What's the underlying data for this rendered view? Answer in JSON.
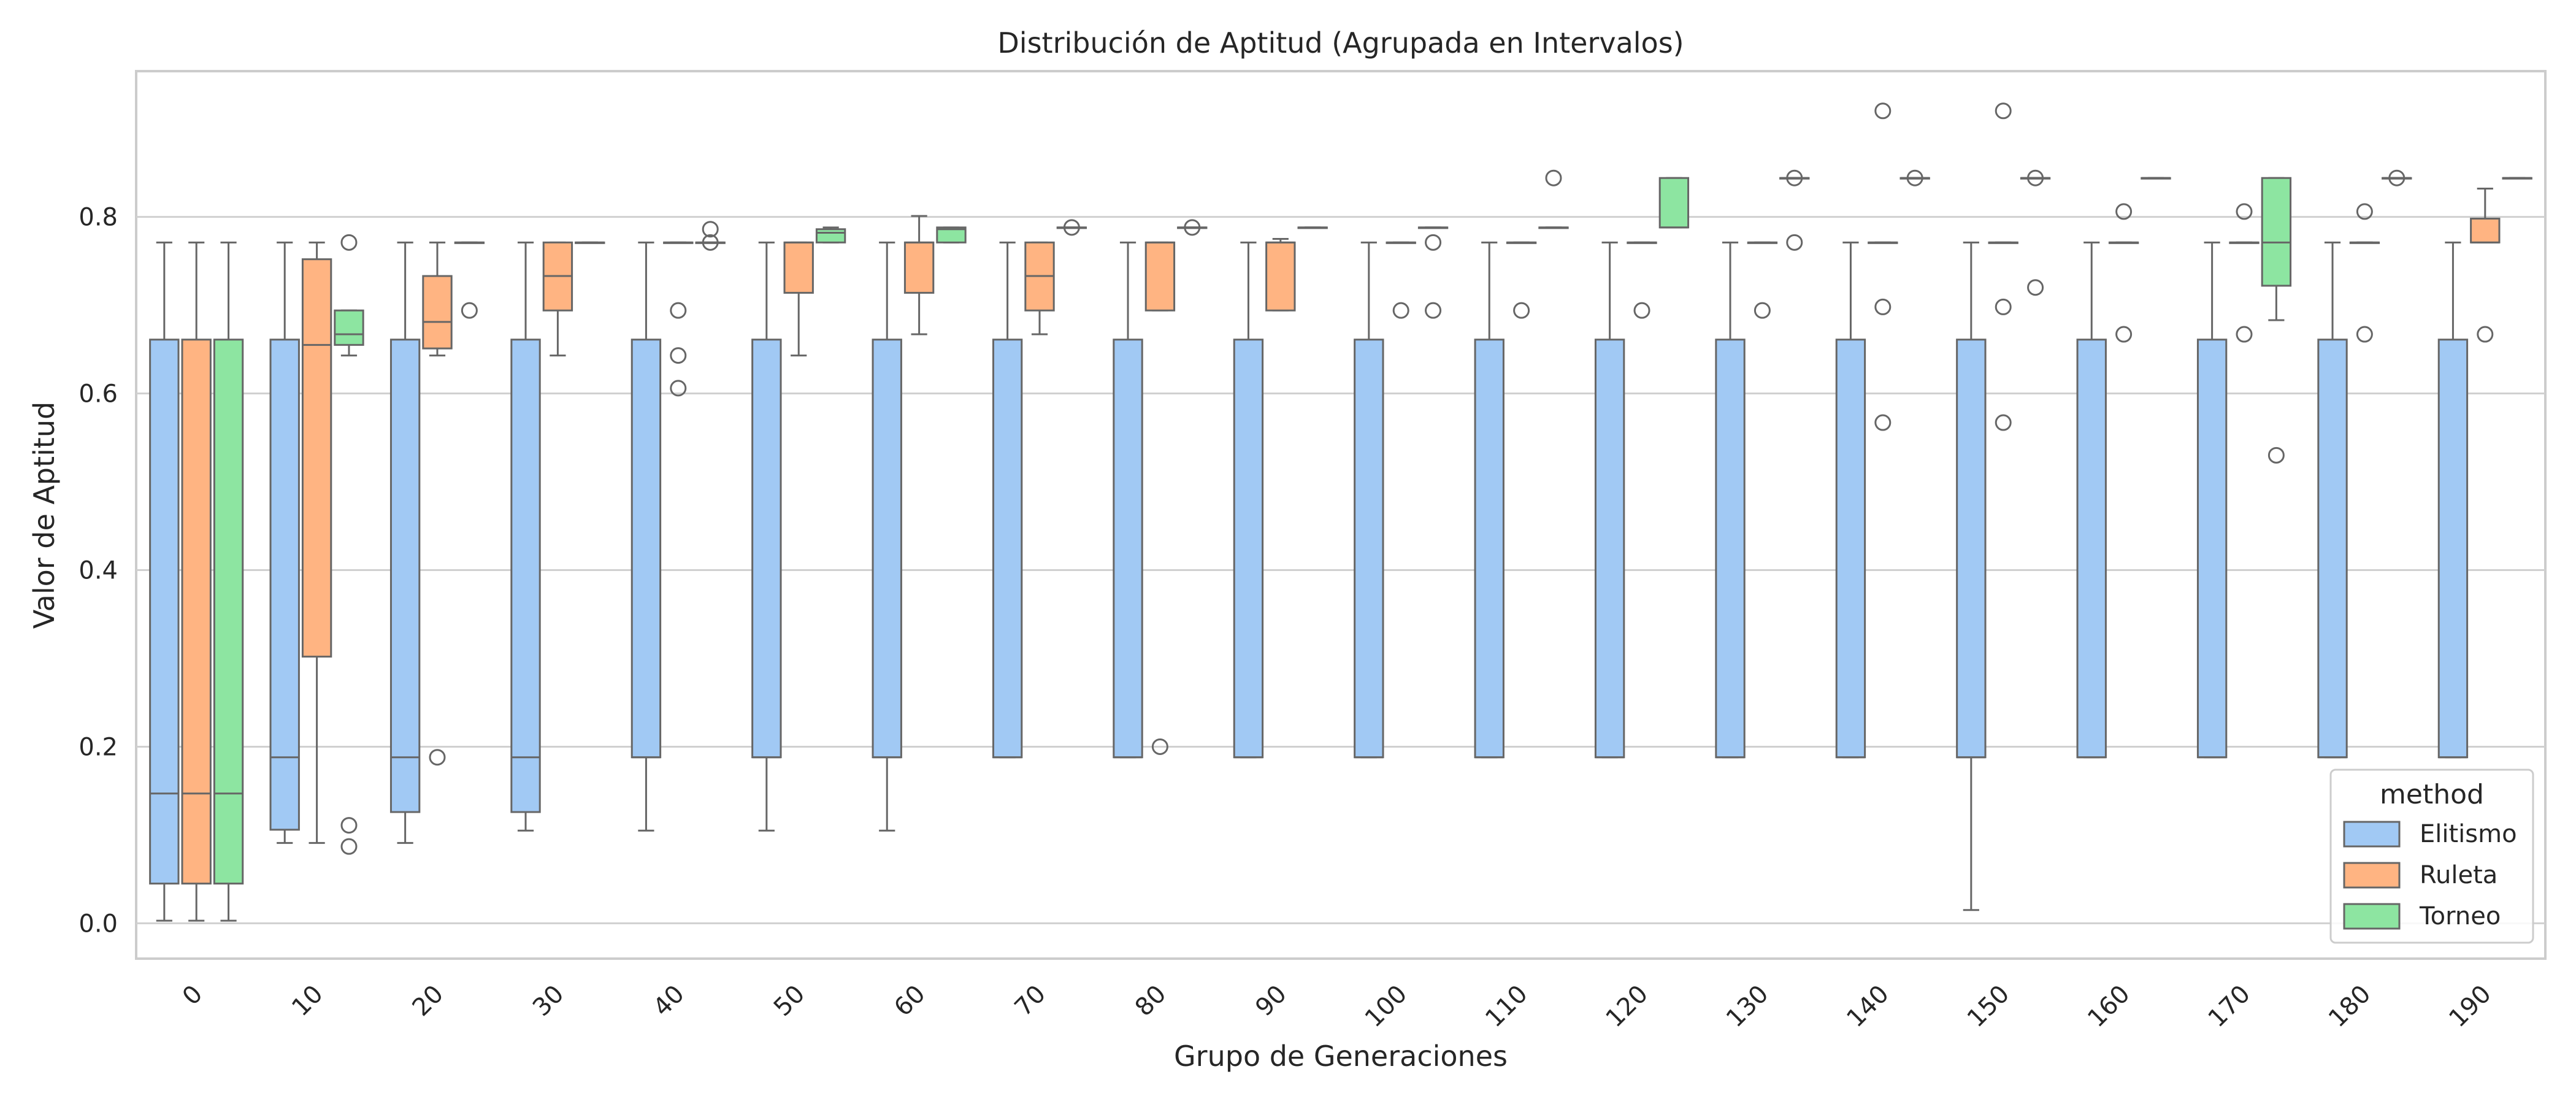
{
  "chart_data": {
    "type": "box",
    "title": "Distribución de Aptitud (Agrupada en Intervalos)",
    "xlabel": "Grupo de Generaciones",
    "ylabel": "Valor de Aptitud",
    "ylim": [
      -0.04,
      0.965
    ],
    "yticks": [
      "0.0",
      "0.2",
      "0.4",
      "0.6",
      "0.8"
    ],
    "categories": [
      "0",
      "10",
      "20",
      "30",
      "40",
      "50",
      "60",
      "70",
      "80",
      "90",
      "100",
      "110",
      "120",
      "130",
      "140",
      "150",
      "160",
      "170",
      "180",
      "190"
    ],
    "grid": "horizontal",
    "legend": {
      "title": "method",
      "placement": "lower-right"
    },
    "series": [
      {
        "name": "Elitismo",
        "color": "#a1c9f4",
        "boxes": [
          {
            "whislo": 0.003,
            "q1": 0.045,
            "med": 0.147,
            "q3": 0.661,
            "whishi": 0.771,
            "fliers": []
          },
          {
            "whislo": 0.091,
            "q1": 0.106,
            "med": 0.188,
            "q3": 0.661,
            "whishi": 0.771,
            "fliers": []
          },
          {
            "whislo": 0.091,
            "q1": 0.126,
            "med": 0.188,
            "q3": 0.661,
            "whishi": 0.771,
            "fliers": []
          },
          {
            "whislo": 0.105,
            "q1": 0.126,
            "med": 0.188,
            "q3": 0.661,
            "whishi": 0.771,
            "fliers": []
          },
          {
            "whislo": 0.105,
            "q1": 0.188,
            "med": 0.188,
            "q3": 0.661,
            "whishi": 0.771,
            "fliers": []
          },
          {
            "whislo": 0.105,
            "q1": 0.188,
            "med": 0.188,
            "q3": 0.661,
            "whishi": 0.771,
            "fliers": []
          },
          {
            "whislo": 0.105,
            "q1": 0.188,
            "med": 0.188,
            "q3": 0.661,
            "whishi": 0.771,
            "fliers": []
          },
          {
            "whislo": 0.188,
            "q1": 0.188,
            "med": 0.188,
            "q3": 0.661,
            "whishi": 0.771,
            "fliers": []
          },
          {
            "whislo": 0.188,
            "q1": 0.188,
            "med": 0.188,
            "q3": 0.661,
            "whishi": 0.771,
            "fliers": []
          },
          {
            "whislo": 0.188,
            "q1": 0.188,
            "med": 0.188,
            "q3": 0.661,
            "whishi": 0.771,
            "fliers": []
          },
          {
            "whislo": 0.188,
            "q1": 0.188,
            "med": 0.188,
            "q3": 0.661,
            "whishi": 0.771,
            "fliers": []
          },
          {
            "whislo": 0.188,
            "q1": 0.188,
            "med": 0.188,
            "q3": 0.661,
            "whishi": 0.771,
            "fliers": []
          },
          {
            "whislo": 0.188,
            "q1": 0.188,
            "med": 0.188,
            "q3": 0.661,
            "whishi": 0.771,
            "fliers": []
          },
          {
            "whislo": 0.188,
            "q1": 0.188,
            "med": 0.188,
            "q3": 0.661,
            "whishi": 0.771,
            "fliers": []
          },
          {
            "whislo": 0.188,
            "q1": 0.188,
            "med": 0.188,
            "q3": 0.661,
            "whishi": 0.771,
            "fliers": []
          },
          {
            "whislo": 0.015,
            "q1": 0.188,
            "med": 0.188,
            "q3": 0.661,
            "whishi": 0.771,
            "fliers": []
          },
          {
            "whislo": 0.188,
            "q1": 0.188,
            "med": 0.188,
            "q3": 0.661,
            "whishi": 0.771,
            "fliers": []
          },
          {
            "whislo": 0.188,
            "q1": 0.188,
            "med": 0.188,
            "q3": 0.661,
            "whishi": 0.771,
            "fliers": []
          },
          {
            "whislo": 0.188,
            "q1": 0.188,
            "med": 0.188,
            "q3": 0.661,
            "whishi": 0.771,
            "fliers": []
          },
          {
            "whislo": 0.188,
            "q1": 0.188,
            "med": 0.188,
            "q3": 0.661,
            "whishi": 0.771,
            "fliers": []
          }
        ]
      },
      {
        "name": "Ruleta",
        "color": "#ffb482",
        "boxes": [
          {
            "whislo": 0.003,
            "q1": 0.045,
            "med": 0.147,
            "q3": 0.661,
            "whishi": 0.771,
            "fliers": []
          },
          {
            "whislo": 0.091,
            "q1": 0.302,
            "med": 0.655,
            "q3": 0.752,
            "whishi": 0.771,
            "fliers": []
          },
          {
            "whislo": 0.643,
            "q1": 0.651,
            "med": 0.681,
            "q3": 0.733,
            "whishi": 0.771,
            "fliers": [
              0.188
            ]
          },
          {
            "whislo": 0.643,
            "q1": 0.694,
            "med": 0.733,
            "q3": 0.771,
            "whishi": 0.771,
            "fliers": []
          },
          {
            "whislo": 0.771,
            "q1": 0.771,
            "med": 0.771,
            "q3": 0.771,
            "whishi": 0.771,
            "fliers": [
              0.694,
              0.643,
              0.606
            ]
          },
          {
            "whislo": 0.643,
            "q1": 0.714,
            "med": 0.771,
            "q3": 0.771,
            "whishi": 0.771,
            "fliers": []
          },
          {
            "whislo": 0.667,
            "q1": 0.714,
            "med": 0.771,
            "q3": 0.771,
            "whishi": 0.801,
            "fliers": []
          },
          {
            "whislo": 0.667,
            "q1": 0.694,
            "med": 0.733,
            "q3": 0.771,
            "whishi": 0.771,
            "fliers": []
          },
          {
            "whislo": 0.694,
            "q1": 0.694,
            "med": 0.771,
            "q3": 0.771,
            "whishi": 0.771,
            "fliers": [
              0.2
            ]
          },
          {
            "whislo": 0.694,
            "q1": 0.694,
            "med": 0.771,
            "q3": 0.771,
            "whishi": 0.775,
            "fliers": []
          },
          {
            "whislo": 0.771,
            "q1": 0.771,
            "med": 0.771,
            "q3": 0.771,
            "whishi": 0.771,
            "fliers": [
              0.694
            ]
          },
          {
            "whislo": 0.771,
            "q1": 0.771,
            "med": 0.771,
            "q3": 0.771,
            "whishi": 0.771,
            "fliers": [
              0.694
            ]
          },
          {
            "whislo": 0.771,
            "q1": 0.771,
            "med": 0.771,
            "q3": 0.771,
            "whishi": 0.771,
            "fliers": [
              0.694
            ]
          },
          {
            "whislo": 0.771,
            "q1": 0.771,
            "med": 0.771,
            "q3": 0.771,
            "whishi": 0.771,
            "fliers": [
              0.694
            ]
          },
          {
            "whislo": 0.771,
            "q1": 0.771,
            "med": 0.771,
            "q3": 0.771,
            "whishi": 0.771,
            "fliers": [
              0.92,
              0.698,
              0.567
            ]
          },
          {
            "whislo": 0.771,
            "q1": 0.771,
            "med": 0.771,
            "q3": 0.771,
            "whishi": 0.771,
            "fliers": [
              0.92,
              0.698,
              0.567
            ]
          },
          {
            "whislo": 0.771,
            "q1": 0.771,
            "med": 0.771,
            "q3": 0.771,
            "whishi": 0.771,
            "fliers": [
              0.806,
              0.667
            ]
          },
          {
            "whislo": 0.771,
            "q1": 0.771,
            "med": 0.771,
            "q3": 0.771,
            "whishi": 0.771,
            "fliers": [
              0.806,
              0.667
            ]
          },
          {
            "whislo": 0.771,
            "q1": 0.771,
            "med": 0.771,
            "q3": 0.771,
            "whishi": 0.771,
            "fliers": [
              0.806,
              0.667
            ]
          },
          {
            "whislo": 0.771,
            "q1": 0.771,
            "med": 0.771,
            "q3": 0.798,
            "whishi": 0.832,
            "fliers": [
              0.667
            ]
          }
        ]
      },
      {
        "name": "Torneo",
        "color": "#8de5a1",
        "boxes": [
          {
            "whislo": 0.003,
            "q1": 0.045,
            "med": 0.147,
            "q3": 0.661,
            "whishi": 0.771,
            "fliers": []
          },
          {
            "whislo": 0.643,
            "q1": 0.655,
            "med": 0.667,
            "q3": 0.694,
            "whishi": 0.694,
            "fliers": [
              0.771,
              0.111,
              0.087
            ]
          },
          {
            "whislo": 0.771,
            "q1": 0.771,
            "med": 0.771,
            "q3": 0.771,
            "whishi": 0.771,
            "fliers": [
              0.694
            ]
          },
          {
            "whislo": 0.771,
            "q1": 0.771,
            "med": 0.771,
            "q3": 0.771,
            "whishi": 0.771,
            "fliers": []
          },
          {
            "whislo": 0.771,
            "q1": 0.771,
            "med": 0.771,
            "q3": 0.771,
            "whishi": 0.771,
            "fliers": [
              0.786,
              0.771
            ]
          },
          {
            "whislo": 0.771,
            "q1": 0.771,
            "med": 0.782,
            "q3": 0.786,
            "whishi": 0.788,
            "fliers": []
          },
          {
            "whislo": 0.771,
            "q1": 0.771,
            "med": 0.786,
            "q3": 0.788,
            "whishi": 0.788,
            "fliers": []
          },
          {
            "whislo": 0.788,
            "q1": 0.788,
            "med": 0.788,
            "q3": 0.788,
            "whishi": 0.788,
            "fliers": [
              0.788
            ]
          },
          {
            "whislo": 0.788,
            "q1": 0.788,
            "med": 0.788,
            "q3": 0.788,
            "whishi": 0.788,
            "fliers": [
              0.788
            ]
          },
          {
            "whislo": 0.788,
            "q1": 0.788,
            "med": 0.788,
            "q3": 0.788,
            "whishi": 0.788,
            "fliers": []
          },
          {
            "whislo": 0.788,
            "q1": 0.788,
            "med": 0.788,
            "q3": 0.788,
            "whishi": 0.788,
            "fliers": [
              0.771,
              0.694
            ]
          },
          {
            "whislo": 0.788,
            "q1": 0.788,
            "med": 0.788,
            "q3": 0.788,
            "whishi": 0.788,
            "fliers": [
              0.844
            ]
          },
          {
            "whislo": 0.788,
            "q1": 0.788,
            "med": 0.788,
            "q3": 0.844,
            "whishi": 0.844,
            "fliers": []
          },
          {
            "whislo": 0.844,
            "q1": 0.844,
            "med": 0.844,
            "q3": 0.844,
            "whishi": 0.844,
            "fliers": [
              0.844,
              0.771
            ]
          },
          {
            "whislo": 0.844,
            "q1": 0.844,
            "med": 0.844,
            "q3": 0.844,
            "whishi": 0.844,
            "fliers": [
              0.844
            ]
          },
          {
            "whislo": 0.844,
            "q1": 0.844,
            "med": 0.844,
            "q3": 0.844,
            "whishi": 0.844,
            "fliers": [
              0.844,
              0.72
            ]
          },
          {
            "whislo": 0.844,
            "q1": 0.844,
            "med": 0.844,
            "q3": 0.844,
            "whishi": 0.844,
            "fliers": []
          },
          {
            "whislo": 0.683,
            "q1": 0.722,
            "med": 0.771,
            "q3": 0.844,
            "whishi": 0.844,
            "fliers": [
              0.53
            ]
          },
          {
            "whislo": 0.844,
            "q1": 0.844,
            "med": 0.844,
            "q3": 0.844,
            "whishi": 0.844,
            "fliers": [
              0.844
            ]
          },
          {
            "whislo": 0.844,
            "q1": 0.844,
            "med": 0.844,
            "q3": 0.844,
            "whishi": 0.844,
            "fliers": []
          }
        ]
      }
    ]
  }
}
